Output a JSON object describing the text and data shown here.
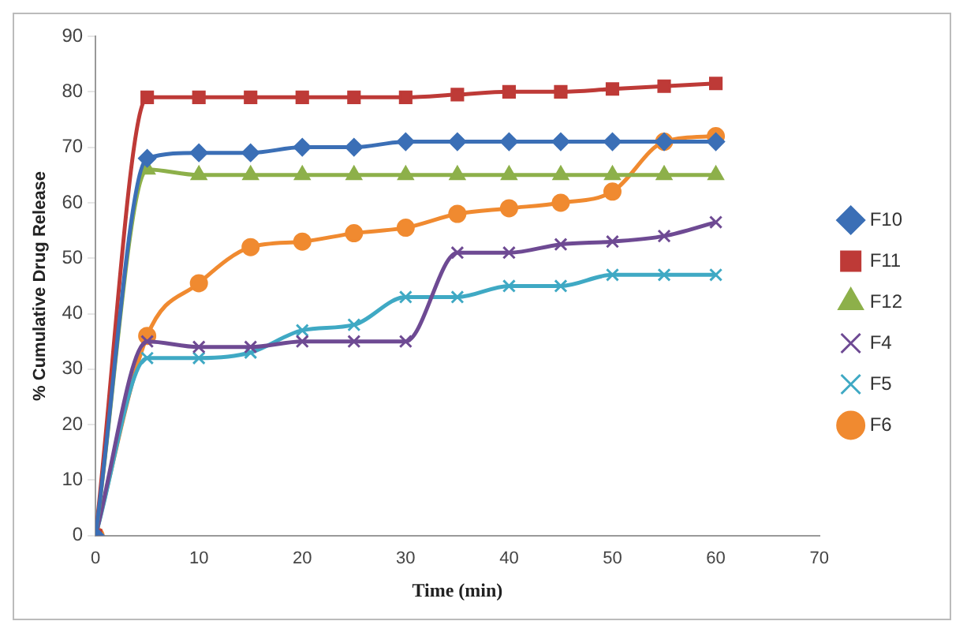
{
  "chart_data": {
    "type": "line",
    "xlabel": "Time (min)",
    "ylabel": "% Cumulative Drug Release",
    "x": [
      0,
      5,
      10,
      15,
      20,
      25,
      30,
      35,
      40,
      45,
      50,
      55,
      60
    ],
    "xlim": [
      0,
      70
    ],
    "xticks": [
      0,
      10,
      20,
      30,
      40,
      50,
      60,
      70
    ],
    "ylim": [
      0,
      90
    ],
    "yticks": [
      0,
      10,
      20,
      30,
      40,
      50,
      60,
      70,
      80,
      90
    ],
    "grid": false,
    "legend": "right",
    "line_style": "solid",
    "series": [
      {
        "name": "F10",
        "color": "#3b6fb6",
        "marker": "diamond",
        "values": [
          0,
          68,
          69,
          69,
          70,
          70,
          71,
          71,
          71,
          71,
          71,
          71,
          71
        ]
      },
      {
        "name": "F11",
        "color": "#be3a37",
        "marker": "square",
        "values": [
          0,
          79,
          79,
          79,
          79,
          79,
          79,
          79.5,
          80,
          80,
          80.5,
          81,
          81.5
        ]
      },
      {
        "name": "F12",
        "color": "#8db04a",
        "marker": "triangle",
        "values": [
          0,
          66,
          65,
          65,
          65,
          65,
          65,
          65,
          65,
          65,
          65,
          65,
          65
        ]
      },
      {
        "name": "F4",
        "color": "#6e4a93",
        "marker": "cross",
        "values": [
          0,
          35,
          34,
          34,
          35,
          35,
          35,
          51,
          51,
          52.5,
          53,
          54,
          56.5
        ]
      },
      {
        "name": "F5",
        "color": "#3fa9c4",
        "marker": "cross",
        "values": [
          0,
          32,
          32,
          33,
          37,
          38,
          43,
          43,
          45,
          45,
          47,
          47,
          47
        ]
      },
      {
        "name": "F6",
        "color": "#f08a30",
        "marker": "circle",
        "values": [
          0,
          36,
          45.5,
          52,
          53,
          54.5,
          55.5,
          58,
          59,
          60,
          62,
          71,
          72
        ]
      }
    ]
  }
}
